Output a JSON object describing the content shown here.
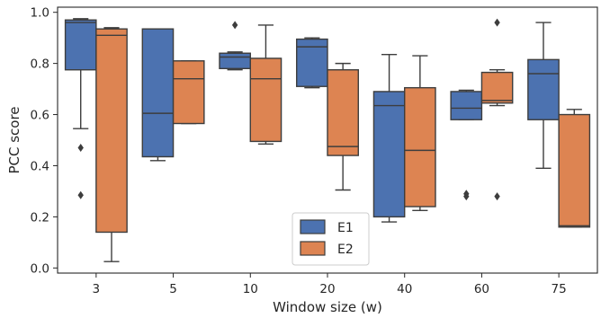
{
  "chart_data": {
    "type": "boxplot",
    "title": "",
    "xlabel": "Window size (w)",
    "ylabel": "PCC score",
    "ylim": [
      -0.02,
      1.02
    ],
    "yticks": [
      "0.0",
      "0.2",
      "0.4",
      "0.6",
      "0.8",
      "1.0"
    ],
    "categories": [
      "3",
      "5",
      "10",
      "20",
      "40",
      "60",
      "75"
    ],
    "grid": false,
    "legend_position": "bottom-center",
    "series": [
      {
        "name": "E1",
        "color": "#4c72b0",
        "boxes": [
          {
            "whislo": 0.545,
            "q1": 0.775,
            "med": 0.96,
            "q3": 0.97,
            "whishi": 0.975,
            "fliers": [
              0.47,
              0.285
            ]
          },
          {
            "whislo": 0.42,
            "q1": 0.435,
            "med": 0.605,
            "q3": 0.935,
            "whishi": 0.935,
            "fliers": []
          },
          {
            "whislo": 0.775,
            "q1": 0.78,
            "med": 0.825,
            "q3": 0.84,
            "whishi": 0.845,
            "fliers": [
              0.95
            ]
          },
          {
            "whislo": 0.705,
            "q1": 0.71,
            "med": 0.865,
            "q3": 0.895,
            "whishi": 0.9,
            "fliers": []
          },
          {
            "whislo": 0.18,
            "q1": 0.2,
            "med": 0.635,
            "q3": 0.69,
            "whishi": 0.835,
            "fliers": []
          },
          {
            "whislo": 0.58,
            "q1": 0.58,
            "med": 0.625,
            "q3": 0.69,
            "whishi": 0.695,
            "fliers": [
              0.29,
              0.28
            ]
          },
          {
            "whislo": 0.39,
            "q1": 0.58,
            "med": 0.76,
            "q3": 0.815,
            "whishi": 0.96,
            "fliers": []
          }
        ]
      },
      {
        "name": "E2",
        "color": "#dd8452",
        "boxes": [
          {
            "whislo": 0.025,
            "q1": 0.14,
            "med": 0.91,
            "q3": 0.935,
            "whishi": 0.94,
            "fliers": []
          },
          {
            "whislo": 0.565,
            "q1": 0.565,
            "med": 0.74,
            "q3": 0.81,
            "whishi": 0.81,
            "fliers": []
          },
          {
            "whislo": 0.485,
            "q1": 0.495,
            "med": 0.74,
            "q3": 0.82,
            "whishi": 0.95,
            "fliers": []
          },
          {
            "whislo": 0.305,
            "q1": 0.44,
            "med": 0.475,
            "q3": 0.775,
            "whishi": 0.8,
            "fliers": []
          },
          {
            "whislo": 0.225,
            "q1": 0.24,
            "med": 0.46,
            "q3": 0.705,
            "whishi": 0.83,
            "fliers": []
          },
          {
            "whislo": 0.635,
            "q1": 0.645,
            "med": 0.655,
            "q3": 0.765,
            "whishi": 0.775,
            "fliers": [
              0.96,
              0.28
            ]
          },
          {
            "whislo": 0.16,
            "q1": 0.16,
            "med": 0.165,
            "q3": 0.6,
            "whishi": 0.62,
            "fliers": []
          }
        ]
      }
    ]
  }
}
